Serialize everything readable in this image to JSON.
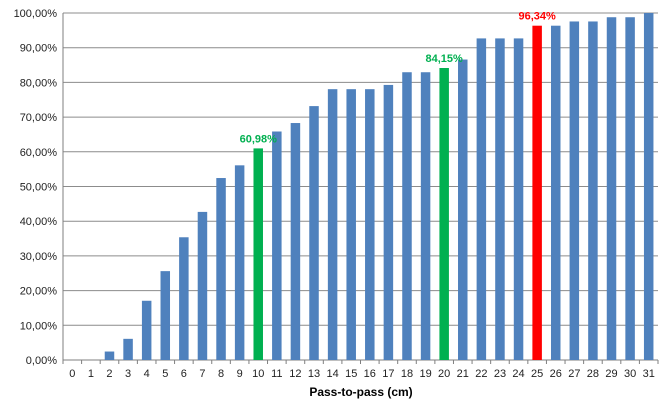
{
  "chart_data": {
    "type": "bar",
    "title": "",
    "xlabel": "Pass-to-pass (cm)",
    "ylabel": "",
    "ylim": [
      0,
      100
    ],
    "y_tick_step": 10,
    "y_tick_labels": [
      "0,00%",
      "10,00%",
      "20,00%",
      "30,00%",
      "40,00%",
      "50,00%",
      "60,00%",
      "70,00%",
      "80,00%",
      "90,00%",
      "100,00%"
    ],
    "grid": "horizontal",
    "legend": "none",
    "categories": [
      "0",
      "1",
      "2",
      "3",
      "4",
      "5",
      "6",
      "7",
      "8",
      "9",
      "10",
      "11",
      "12",
      "13",
      "14",
      "15",
      "16",
      "17",
      "18",
      "19",
      "20",
      "21",
      "22",
      "23",
      "24",
      "25",
      "26",
      "27",
      "28",
      "29",
      "30",
      "31"
    ],
    "values": [
      0,
      0,
      2.44,
      6.1,
      17.07,
      25.61,
      35.37,
      42.68,
      52.44,
      56.1,
      60.98,
      65.85,
      68.29,
      73.17,
      78.05,
      78.05,
      78.05,
      79.27,
      82.93,
      82.93,
      84.15,
      86.59,
      92.68,
      92.68,
      92.68,
      96.34,
      96.34,
      97.56,
      97.56,
      98.78,
      98.78,
      100
    ],
    "bar_color": "#4f81bd",
    "highlights": [
      {
        "category": "10",
        "color": "#00b050",
        "label": "60,98%"
      },
      {
        "category": "20",
        "color": "#00b050",
        "label": "84,15%"
      },
      {
        "category": "25",
        "color": "#ff0000",
        "label": "96,34%"
      }
    ]
  }
}
